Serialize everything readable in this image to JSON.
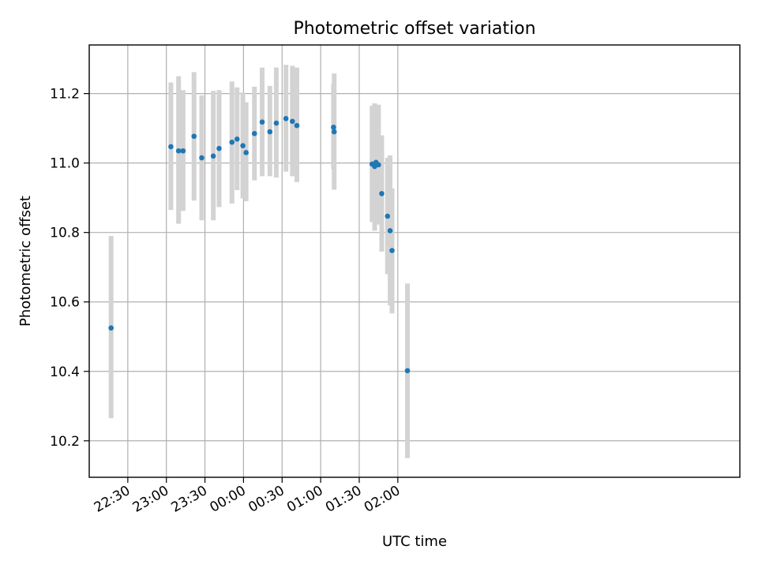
{
  "chart_data": {
    "type": "scatter",
    "title": "Photometric offset variation",
    "xlabel": "UTC time",
    "ylabel": "Photometric offset",
    "x_unit": "minutes_relative_to_midnight_UTC",
    "xlim": [
      -120,
      386
    ],
    "ylim": [
      10.095,
      11.34
    ],
    "grid": true,
    "x_ticks": [
      {
        "value": -90,
        "label": "22:30"
      },
      {
        "value": -60,
        "label": "23:00"
      },
      {
        "value": -30,
        "label": "23:30"
      },
      {
        "value": 0,
        "label": "00:00"
      },
      {
        "value": 30,
        "label": "00:30"
      },
      {
        "value": 60,
        "label": "01:00"
      },
      {
        "value": 90,
        "label": "01:30"
      },
      {
        "value": 120,
        "label": "02:00"
      }
    ],
    "y_ticks": [
      {
        "value": 10.2,
        "label": "10.2"
      },
      {
        "value": 10.4,
        "label": "10.4"
      },
      {
        "value": 10.6,
        "label": "10.6"
      },
      {
        "value": 10.8,
        "label": "10.8"
      },
      {
        "value": 11.0,
        "label": "11.0"
      },
      {
        "value": 11.2,
        "label": "11.2"
      }
    ],
    "series": [
      {
        "marker_color": "#1f77b4",
        "errorbar_color": "#d3d3d3",
        "points": [
          {
            "x": -103,
            "y": 10.525,
            "ylow": 10.265,
            "yhigh": 10.79
          },
          {
            "x": -56.5,
            "y": 11.047,
            "ylow": 10.865,
            "yhigh": 11.232
          },
          {
            "x": -50.5,
            "y": 11.035,
            "ylow": 10.825,
            "yhigh": 11.25
          },
          {
            "x": -47,
            "y": 11.035,
            "ylow": 10.862,
            "yhigh": 11.21
          },
          {
            "x": -38.5,
            "y": 11.077,
            "ylow": 10.892,
            "yhigh": 11.262
          },
          {
            "x": -32.5,
            "y": 11.015,
            "ylow": 10.835,
            "yhigh": 11.195
          },
          {
            "x": -23.5,
            "y": 11.02,
            "ylow": 10.835,
            "yhigh": 11.208
          },
          {
            "x": -19,
            "y": 11.042,
            "ylow": 10.873,
            "yhigh": 11.21
          },
          {
            "x": -9,
            "y": 11.06,
            "ylow": 10.883,
            "yhigh": 11.235
          },
          {
            "x": -5,
            "y": 11.069,
            "ylow": 10.922,
            "yhigh": 11.218
          },
          {
            "x": -0.5,
            "y": 11.05,
            "ylow": 10.898,
            "yhigh": 11.203
          },
          {
            "x": 2,
            "y": 11.03,
            "ylow": 10.89,
            "yhigh": 11.175
          },
          {
            "x": 8.5,
            "y": 11.085,
            "ylow": 10.95,
            "yhigh": 11.22
          },
          {
            "x": 14.5,
            "y": 11.118,
            "ylow": 10.962,
            "yhigh": 11.275
          },
          {
            "x": 20.5,
            "y": 11.09,
            "ylow": 10.962,
            "yhigh": 11.222
          },
          {
            "x": 25.5,
            "y": 11.115,
            "ylow": 10.958,
            "yhigh": 11.275
          },
          {
            "x": 33,
            "y": 11.128,
            "ylow": 10.975,
            "yhigh": 11.283
          },
          {
            "x": 38,
            "y": 11.12,
            "ylow": 10.962,
            "yhigh": 11.28
          },
          {
            "x": 41.5,
            "y": 11.108,
            "ylow": 10.945,
            "yhigh": 11.275
          },
          {
            "x": 70,
            "y": 11.103,
            "ylow": 10.982,
            "yhigh": 11.228
          },
          {
            "x": 70.5,
            "y": 11.09,
            "ylow": 10.923,
            "yhigh": 11.258
          },
          {
            "x": 100,
            "y": 10.997,
            "ylow": 10.83,
            "yhigh": 11.165
          },
          {
            "x": 102,
            "y": 10.99,
            "ylow": 10.805,
            "yhigh": 11.172
          },
          {
            "x": 103,
            "y": 11.002,
            "ylow": 10.855,
            "yhigh": 11.155
          },
          {
            "x": 105,
            "y": 10.995,
            "ylow": 10.823,
            "yhigh": 11.168
          },
          {
            "x": 107.5,
            "y": 10.912,
            "ylow": 10.745,
            "yhigh": 11.08
          },
          {
            "x": 112,
            "y": 10.847,
            "ylow": 10.68,
            "yhigh": 11.015
          },
          {
            "x": 114,
            "y": 10.805,
            "ylow": 10.59,
            "yhigh": 11.022
          },
          {
            "x": 115.5,
            "y": 10.748,
            "ylow": 10.567,
            "yhigh": 10.927
          },
          {
            "x": 127.5,
            "y": 10.402,
            "ylow": 10.15,
            "yhigh": 10.653
          }
        ]
      }
    ]
  }
}
